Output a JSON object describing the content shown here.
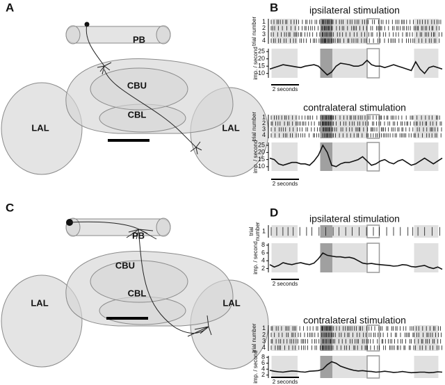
{
  "panels": [
    {
      "label": "A",
      "brain": {
        "labels": [
          "PB",
          "CBU",
          "CBL",
          "LAL",
          "LAL"
        ]
      }
    },
    {
      "label": "B",
      "plots": [
        {
          "title": "ipsilateral stimulation",
          "raster_ylabel": [
            "trial number"
          ],
          "trials": [
            1,
            2,
            3,
            4
          ],
          "rate_ylabel": "imp. / second",
          "ylim": [
            7,
            27
          ],
          "yticks": [
            10,
            15,
            20,
            25
          ],
          "scale_bar": "2 seconds",
          "values": [
            13,
            14,
            15,
            16,
            15.5,
            15,
            14.5,
            14,
            15,
            15.5,
            16,
            15,
            12,
            9,
            11,
            15,
            17,
            16.5,
            16,
            15,
            15,
            16,
            19,
            16,
            15,
            15,
            14,
            15,
            16,
            15,
            14,
            13,
            12,
            18,
            13,
            10,
            14,
            15,
            14,
            13
          ]
        },
        {
          "title": "contralateral stimulation",
          "raster_ylabel": [
            "trial number"
          ],
          "trials": [
            1,
            2,
            3,
            4
          ],
          "rate_ylabel": "imp. / second",
          "ylim": [
            7,
            27
          ],
          "yticks": [
            10,
            15,
            20,
            25
          ],
          "scale_bar": "2 seconds",
          "values": [
            16,
            15,
            12,
            11,
            12,
            13,
            13,
            12,
            12,
            11,
            14,
            18,
            25,
            20,
            11,
            10,
            12,
            13,
            13,
            14,
            15,
            17,
            14,
            11,
            12,
            14,
            15,
            13,
            12,
            14,
            15,
            13,
            11,
            12,
            14,
            16,
            14,
            12,
            14,
            16
          ]
        }
      ]
    },
    {
      "label": "C",
      "brain": {
        "labels": [
          "PB",
          "CBU",
          "CBL",
          "LAL",
          "LAL"
        ]
      }
    },
    {
      "label": "D",
      "plots": [
        {
          "title": "ipsilateral stimulation",
          "raster_ylabel": [
            "trial",
            "number"
          ],
          "trials": [
            1
          ],
          "rate_ylabel": "imp. / second",
          "ylim": [
            1,
            8.5
          ],
          "yticks": [
            2,
            4,
            6,
            8
          ],
          "scale_bar": "2 seconds",
          "values": [
            3,
            2.4,
            2.8,
            3.5,
            3.2,
            3,
            3.3,
            3.5,
            3.2,
            3,
            3.4,
            4.5,
            6,
            5.4,
            5.2,
            5,
            5,
            4.8,
            4.9,
            4.6,
            4,
            3.4,
            3.2,
            3.3,
            3.1,
            3,
            2.9,
            2.8,
            2.6,
            2.7,
            3,
            2.9,
            2.5,
            2.4,
            2.6,
            2.8,
            2.3,
            2,
            2.4,
            1.8
          ]
        },
        {
          "title": "contralateral stimulation",
          "raster_ylabel": [
            "trial number"
          ],
          "trials": [
            1,
            2,
            3,
            4
          ],
          "rate_ylabel": "imp. / second",
          "ylim": [
            1,
            8.5
          ],
          "yticks": [
            2,
            4,
            6,
            8
          ],
          "scale_bar": "2 seconds",
          "values": [
            3.6,
            3.3,
            3.1,
            3,
            3.2,
            3.4,
            3.3,
            3.1,
            3,
            3.3,
            3.4,
            3.5,
            4,
            5.5,
            6.5,
            6,
            5,
            4.5,
            4,
            3.6,
            3.4,
            3.5,
            3.3,
            3.2,
            3,
            3.1,
            3.3,
            3.1,
            2.9,
            3,
            3.2,
            3,
            2.8,
            2.9,
            3,
            3,
            2.8,
            2.9,
            3.1,
            3
          ]
        }
      ]
    }
  ]
}
